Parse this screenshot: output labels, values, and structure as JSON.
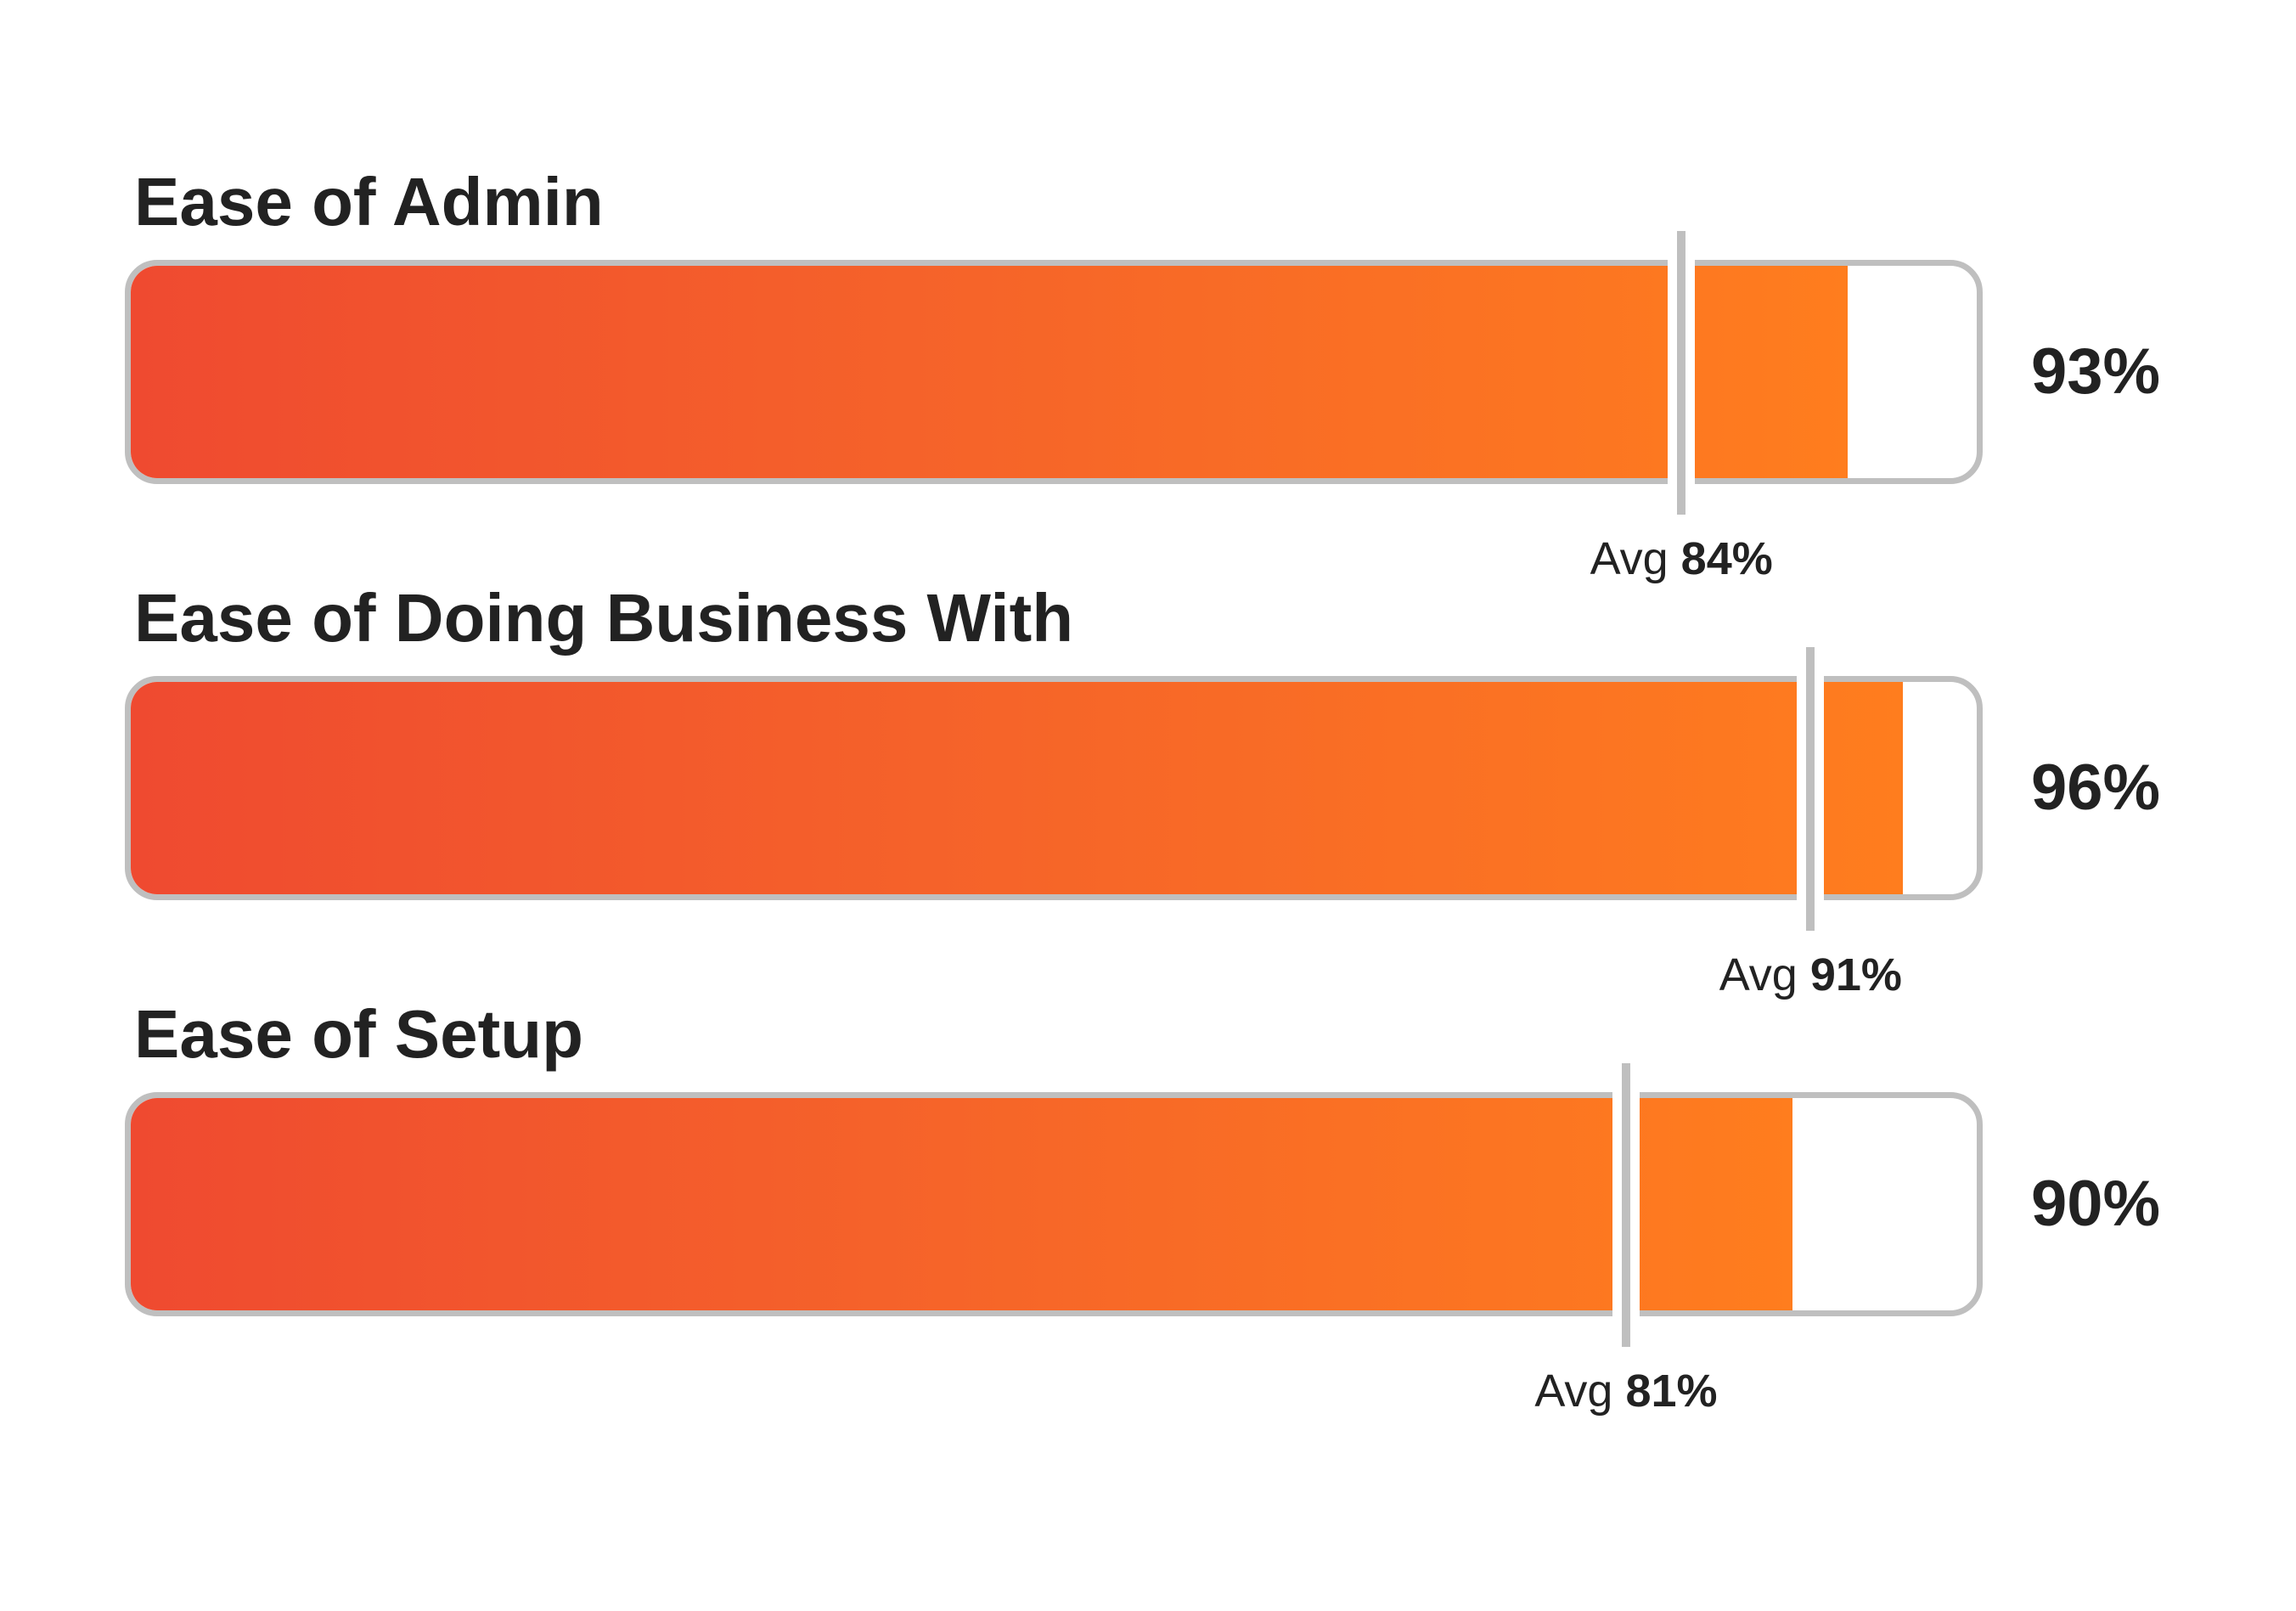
{
  "chart_data": {
    "type": "bar",
    "orientation": "horizontal",
    "xlim": [
      0,
      100
    ],
    "unit": "%",
    "categories": [
      "Ease of Admin",
      "Ease of Doing Business With",
      "Ease of Setup"
    ],
    "values": [
      93,
      96,
      90
    ],
    "averages": [
      84,
      91,
      81
    ],
    "value_labels": [
      "93%",
      "96%",
      "90%"
    ],
    "avg_prefix": "Avg",
    "avg_labels": [
      "84%",
      "91%",
      "81%"
    ],
    "grid": false,
    "legend": "none"
  },
  "colors": {
    "fill_start": "#ef4a30",
    "fill_end": "#ff7d1e",
    "frame": "#bfbfbf",
    "text": "#222222"
  }
}
